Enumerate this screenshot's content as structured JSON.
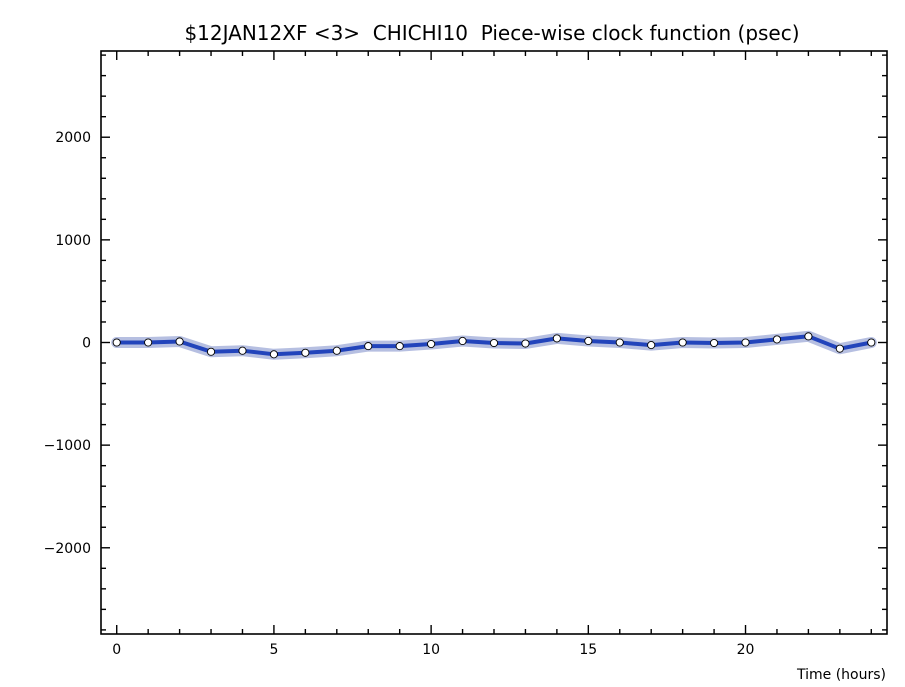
{
  "chart_data": {
    "type": "line",
    "title": "$12JAN12XF <3>  CHICHI10  Piece-wise clock function (psec)",
    "xlabel": "Time (hours)",
    "ylabel": "",
    "xlim": [
      -0.5,
      24.5
    ],
    "ylim": [
      -2840,
      2840
    ],
    "x_ticks": [
      0,
      5,
      10,
      15,
      20
    ],
    "y_ticks": [
      -2000,
      -1000,
      0,
      1000,
      2000
    ],
    "grid": false,
    "colors": {
      "line": "#2244bb",
      "band": "#a9b4dc",
      "marker_fill": "#ffffff",
      "axis": "#000000"
    },
    "series": [
      {
        "x": [
          0,
          1,
          2,
          3,
          4,
          5,
          6,
          7,
          8,
          9,
          10,
          11,
          12,
          13,
          14,
          15,
          16,
          17,
          18,
          19,
          20,
          21,
          22,
          23,
          24
        ],
        "values": [
          0,
          0,
          10,
          -90,
          -80,
          -115,
          -100,
          -80,
          -35,
          -35,
          -15,
          15,
          -5,
          -10,
          40,
          15,
          0,
          -25,
          0,
          -5,
          0,
          30,
          60,
          -60,
          0
        ]
      }
    ]
  }
}
